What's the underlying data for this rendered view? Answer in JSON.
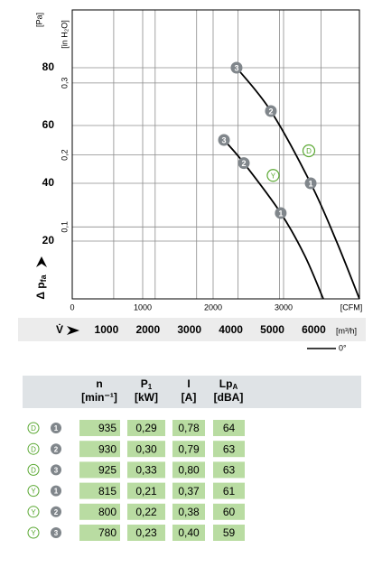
{
  "chart_data": {
    "type": "line",
    "y_unit": "[Pa]",
    "y2_unit": "[in H₂O]",
    "y_label": {
      "main": "Δ p",
      "sub": "fa"
    },
    "x_unit": "[CFM]",
    "x2_unit": "[m³/h]",
    "x2_label": "V̇",
    "xlim": [
      0,
      4077
    ],
    "xticks": [
      0,
      1000,
      2000,
      3000
    ],
    "x2lim": [
      0,
      6927
    ],
    "x2ticks": [
      1000,
      2000,
      3000,
      4000,
      5000,
      6000
    ],
    "ylim": [
      0,
      100
    ],
    "yticks": [
      20,
      40,
      60,
      80
    ],
    "y2lim": [
      0,
      0.4015
    ],
    "y2ticks": [
      {
        "value": 0.1,
        "label": "0,1"
      },
      {
        "value": 0.2,
        "label": "0,2"
      },
      {
        "value": 0.3,
        "label": "0,3"
      }
    ],
    "legend": "0°",
    "series": [
      {
        "name": "D",
        "color": "#000000",
        "x": [
          2333,
          2820,
          3385,
          3750,
          4077
        ],
        "values": [
          80,
          65,
          40,
          20,
          0
        ],
        "point_labels": [
          "3",
          "2",
          "1",
          null,
          null
        ]
      },
      {
        "name": "Y",
        "color": "#000000",
        "x": [
          2154,
          2436,
          2960,
          3300,
          3564
        ],
        "values": [
          55,
          47,
          29.7,
          15,
          0
        ],
        "point_labels": [
          "3",
          "2",
          "1",
          null,
          null
        ]
      }
    ]
  },
  "table": {
    "headers": [
      {
        "main": "n",
        "unit": "[min⁻¹]"
      },
      {
        "main": "P",
        "sub": "1",
        "unit": "[kW]"
      },
      {
        "main": "I",
        "unit": "[A]"
      },
      {
        "main": "Lp",
        "sub": "A",
        "unit": "[dBA]"
      }
    ],
    "rows": [
      [
        "D",
        "1",
        "935",
        "0,29",
        "0,78",
        "64"
      ],
      [
        "D",
        "2",
        "930",
        "0,30",
        "0,79",
        "63"
      ],
      [
        "D",
        "3",
        "925",
        "0,33",
        "0,80",
        "63"
      ],
      [
        "Y",
        "1",
        "815",
        "0,21",
        "0,37",
        "61"
      ],
      [
        "Y",
        "2",
        "800",
        "0,22",
        "0,38",
        "60"
      ],
      [
        "Y",
        "3",
        "780",
        "0,23",
        "0,40",
        "59"
      ]
    ]
  }
}
